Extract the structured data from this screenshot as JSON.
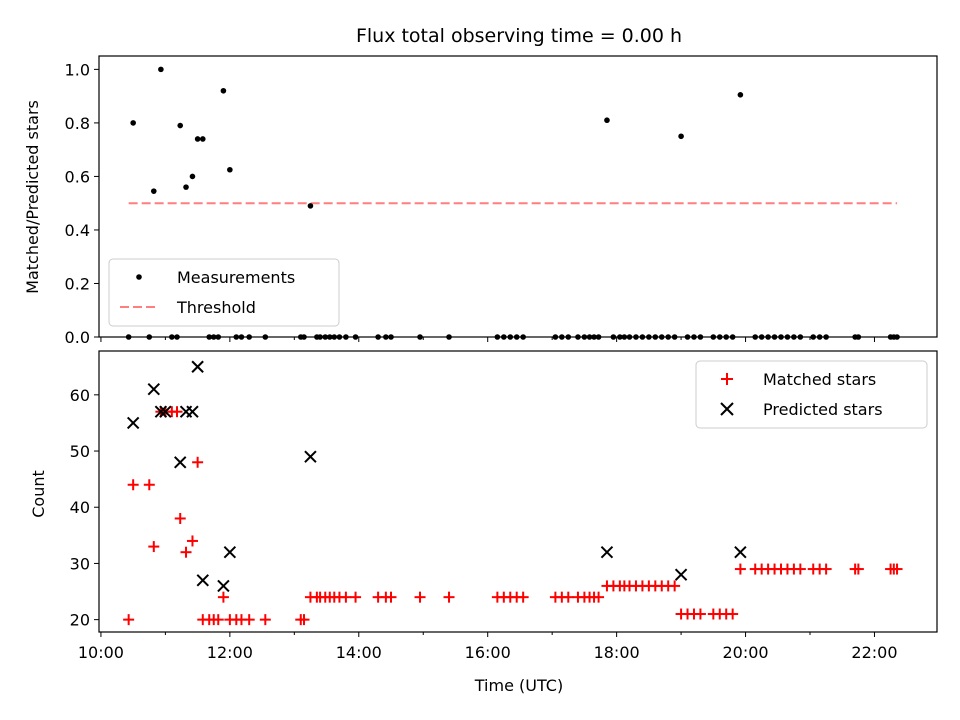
{
  "title": "Flux total observing time = 0.00 h",
  "xlabel": "Time (UTC)",
  "x_ticks": [
    "10:00",
    "12:00",
    "14:00",
    "16:00",
    "18:00",
    "20:00",
    "22:00"
  ],
  "colors": {
    "measurement": "#000000",
    "threshold": "#ff7f7f",
    "matched": "#ff0000",
    "predicted": "#000000"
  },
  "chart_data": [
    {
      "type": "scatter",
      "ylabel": "Matched/Predicted stars",
      "xlim": [
        9.97,
        22.97
      ],
      "ylim": [
        0,
        1.05
      ],
      "y_ticks": [
        "0.0",
        "0.2",
        "0.4",
        "0.6",
        "0.8",
        "1.0"
      ],
      "legend_position": "lower-left",
      "series": [
        {
          "name": "Measurements",
          "x": [
            10.43,
            10.5,
            10.75,
            10.82,
            10.93,
            11.1,
            11.18,
            11.23,
            11.32,
            11.42,
            11.5,
            11.58,
            11.68,
            11.75,
            11.82,
            11.9,
            12.0,
            12.1,
            12.18,
            12.3,
            12.55,
            13.1,
            13.15,
            13.25,
            13.35,
            13.4,
            13.48,
            13.55,
            13.62,
            13.7,
            13.8,
            13.95,
            14.3,
            14.42,
            14.5,
            14.95,
            15.4,
            16.15,
            16.25,
            16.35,
            16.45,
            16.55,
            17.05,
            17.15,
            17.25,
            17.4,
            17.5,
            17.58,
            17.65,
            17.72,
            17.85,
            17.95,
            18.05,
            18.12,
            18.2,
            18.3,
            18.4,
            18.5,
            18.6,
            18.7,
            18.8,
            18.9,
            19.0,
            19.1,
            19.2,
            19.3,
            19.5,
            19.6,
            19.7,
            19.8,
            19.92,
            20.15,
            20.25,
            20.35,
            20.45,
            20.55,
            20.65,
            20.75,
            20.85,
            21.05,
            21.15,
            21.25,
            21.7,
            21.75,
            22.25,
            22.3,
            22.35
          ],
          "y": [
            0.0,
            0.8,
            0.0,
            0.545,
            1.0,
            0.0,
            0.0,
            0.79,
            0.56,
            0.6,
            0.74,
            0.74,
            0.0,
            0.0,
            0.0,
            0.92,
            0.625,
            0.0,
            0.0,
            0.0,
            0.0,
            0.0,
            0.0,
            0.49,
            0.0,
            0.0,
            0.0,
            0.0,
            0.0,
            0.0,
            0.0,
            0.0,
            0.0,
            0.0,
            0.0,
            0.0,
            0.0,
            0.0,
            0.0,
            0.0,
            0.0,
            0.0,
            0.0,
            0.0,
            0.0,
            0.0,
            0.0,
            0.0,
            0.0,
            0.0,
            0.81,
            0.0,
            0.0,
            0.0,
            0.0,
            0.0,
            0.0,
            0.0,
            0.0,
            0.0,
            0.0,
            0.0,
            0.75,
            0.0,
            0.0,
            0.0,
            0.0,
            0.0,
            0.0,
            0.0,
            0.905,
            0.0,
            0.0,
            0.0,
            0.0,
            0.0,
            0.0,
            0.0,
            0.0,
            0.0,
            0.0,
            0.0,
            0.0,
            0.0,
            0.0,
            0.0,
            0.0
          ]
        },
        {
          "name": "Threshold",
          "type": "line",
          "style": "dashed",
          "x": [
            10.43,
            22.35
          ],
          "y": [
            0.5,
            0.5
          ]
        }
      ]
    },
    {
      "type": "scatter",
      "ylabel": "Count",
      "xlim": [
        9.97,
        22.97
      ],
      "ylim": [
        17.8,
        67.8
      ],
      "y_ticks": [
        "20",
        "30",
        "40",
        "50",
        "60"
      ],
      "legend_position": "upper-right",
      "series": [
        {
          "name": "Matched stars",
          "marker": "plus",
          "x": [
            10.43,
            10.5,
            10.75,
            10.82,
            10.93,
            11.0,
            11.1,
            11.18,
            11.23,
            11.32,
            11.42,
            11.5,
            11.58,
            11.68,
            11.75,
            11.82,
            11.9,
            12.0,
            12.1,
            12.18,
            12.3,
            12.55,
            13.1,
            13.15,
            13.25,
            13.35,
            13.4,
            13.48,
            13.55,
            13.62,
            13.7,
            13.8,
            13.95,
            14.3,
            14.42,
            14.5,
            14.95,
            15.4,
            16.15,
            16.25,
            16.35,
            16.45,
            16.55,
            17.05,
            17.15,
            17.25,
            17.4,
            17.5,
            17.58,
            17.65,
            17.72,
            17.85,
            17.95,
            18.05,
            18.12,
            18.2,
            18.3,
            18.4,
            18.5,
            18.6,
            18.7,
            18.8,
            18.9,
            19.0,
            19.1,
            19.2,
            19.3,
            19.5,
            19.6,
            19.7,
            19.8,
            19.92,
            20.15,
            20.25,
            20.35,
            20.45,
            20.55,
            20.65,
            20.75,
            20.85,
            21.05,
            21.15,
            21.25,
            21.7,
            21.75,
            22.25,
            22.3,
            22.35
          ],
          "y": [
            20,
            44,
            44,
            33,
            57,
            57,
            57,
            57,
            38,
            32,
            34,
            48,
            20,
            20,
            20,
            20,
            24,
            20,
            20,
            20,
            20,
            20,
            20,
            20,
            24,
            24,
            24,
            24,
            24,
            24,
            24,
            24,
            24,
            24,
            24,
            24,
            24,
            24,
            24,
            24,
            24,
            24,
            24,
            24,
            24,
            24,
            24,
            24,
            24,
            24,
            24,
            26,
            26,
            26,
            26,
            26,
            26,
            26,
            26,
            26,
            26,
            26,
            26,
            21,
            21,
            21,
            21,
            21,
            21,
            21,
            21,
            29,
            29,
            29,
            29,
            29,
            29,
            29,
            29,
            29,
            29,
            29,
            29,
            29,
            29,
            29,
            29,
            29
          ]
        },
        {
          "name": "Predicted stars",
          "marker": "x",
          "x": [
            10.5,
            10.82,
            10.93,
            11.0,
            11.23,
            11.32,
            11.42,
            11.5,
            11.58,
            11.9,
            12.0,
            13.25,
            17.85,
            19.0,
            19.92
          ],
          "y": [
            55,
            61,
            57,
            57,
            48,
            57,
            57,
            65,
            27,
            26,
            32,
            49,
            32,
            28,
            32
          ]
        }
      ]
    }
  ]
}
